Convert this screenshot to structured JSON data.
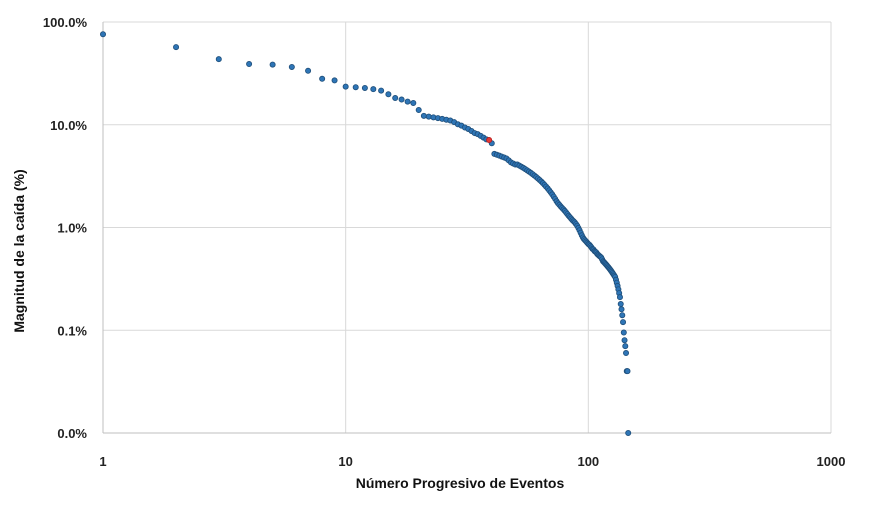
{
  "chart_data": {
    "type": "scatter",
    "title": "",
    "xlabel": "Número Progresivo de Eventos",
    "ylabel": "Magnitud de la caída (%)",
    "x_scale": "log",
    "y_scale": "log",
    "xlim": [
      1,
      1000
    ],
    "ylim": [
      0.0001,
      1
    ],
    "x_ticks": [
      1,
      10,
      100,
      1000
    ],
    "x_tick_labels": [
      "1",
      "10",
      "100",
      "1000"
    ],
    "y_ticks": [
      0.0001,
      0.001,
      0.01,
      0.1,
      1
    ],
    "y_tick_labels": [
      "0.0%",
      "0.1%",
      "1.0%",
      "10.0%",
      "100.0%"
    ],
    "grid": true,
    "legend": "none",
    "series": [
      {
        "color": "#2e75b6",
        "edge_color": "#1f4e79",
        "points": [
          [
            1,
            0.76
          ],
          [
            2,
            0.57
          ],
          [
            3,
            0.435
          ],
          [
            4,
            0.39
          ],
          [
            5,
            0.385
          ],
          [
            6,
            0.365
          ],
          [
            7,
            0.335
          ],
          [
            8,
            0.28
          ],
          [
            9,
            0.27
          ],
          [
            10,
            0.235
          ],
          [
            11,
            0.232
          ],
          [
            12,
            0.228
          ],
          [
            13,
            0.222
          ],
          [
            14,
            0.215
          ],
          [
            15,
            0.198
          ],
          [
            16,
            0.182
          ],
          [
            17,
            0.176
          ],
          [
            18,
            0.168
          ],
          [
            19,
            0.163
          ],
          [
            20,
            0.139
          ],
          [
            21,
            0.122
          ],
          [
            22,
            0.12
          ],
          [
            23,
            0.118
          ],
          [
            24,
            0.116
          ],
          [
            25,
            0.114
          ],
          [
            26,
            0.112
          ],
          [
            27,
            0.11
          ],
          [
            28,
            0.106
          ],
          [
            29,
            0.101
          ],
          [
            30,
            0.098
          ],
          [
            31,
            0.094
          ],
          [
            32,
            0.091
          ],
          [
            33,
            0.087
          ],
          [
            34,
            0.083
          ],
          [
            35,
            0.081
          ],
          [
            36,
            0.078
          ],
          [
            37,
            0.075
          ],
          [
            38,
            0.072
          ],
          [
            40,
            0.066
          ],
          [
            41,
            0.052
          ],
          [
            42,
            0.051
          ],
          [
            43,
            0.05
          ],
          [
            44,
            0.049
          ],
          [
            45,
            0.048
          ],
          [
            46,
            0.047
          ],
          [
            47,
            0.045
          ],
          [
            48,
            0.043
          ],
          [
            49,
            0.042
          ],
          [
            50,
            0.041
          ],
          [
            51,
            0.041
          ],
          [
            52,
            0.04
          ],
          [
            53,
            0.039
          ],
          [
            54,
            0.038
          ],
          [
            55,
            0.037
          ],
          [
            56,
            0.036
          ],
          [
            57,
            0.035
          ],
          [
            58,
            0.034
          ],
          [
            59,
            0.033
          ],
          [
            60,
            0.032
          ],
          [
            61,
            0.031
          ],
          [
            62,
            0.03
          ],
          [
            63,
            0.029
          ],
          [
            64,
            0.028
          ],
          [
            65,
            0.027
          ],
          [
            66,
            0.026
          ],
          [
            67,
            0.025
          ],
          [
            68,
            0.024
          ],
          [
            69,
            0.023
          ],
          [
            70,
            0.022
          ],
          [
            71,
            0.021
          ],
          [
            72,
            0.02
          ],
          [
            73,
            0.019
          ],
          [
            74,
            0.018
          ],
          [
            75,
            0.0172
          ],
          [
            76,
            0.0166
          ],
          [
            77,
            0.016
          ],
          [
            78,
            0.0155
          ],
          [
            79,
            0.015
          ],
          [
            80,
            0.0145
          ],
          [
            81,
            0.014
          ],
          [
            82,
            0.0135
          ],
          [
            83,
            0.013
          ],
          [
            84,
            0.0126
          ],
          [
            85,
            0.0122
          ],
          [
            86,
            0.0118
          ],
          [
            87,
            0.0115
          ],
          [
            88,
            0.0112
          ],
          [
            89,
            0.0108
          ],
          [
            90,
            0.0104
          ],
          [
            91,
            0.0099
          ],
          [
            92,
            0.0094
          ],
          [
            93,
            0.0089
          ],
          [
            94,
            0.0084
          ],
          [
            95,
            0.008
          ],
          [
            96,
            0.0077
          ],
          [
            97,
            0.0075
          ],
          [
            98,
            0.0073
          ],
          [
            99,
            0.0071
          ],
          [
            100,
            0.0069
          ],
          [
            101,
            0.0068
          ],
          [
            102,
            0.0066
          ],
          [
            103,
            0.0064
          ],
          [
            104,
            0.0062
          ],
          [
            105,
            0.0061
          ],
          [
            106,
            0.0059
          ],
          [
            107,
            0.0058
          ],
          [
            108,
            0.0057
          ],
          [
            109,
            0.0055
          ],
          [
            110,
            0.0054
          ],
          [
            111,
            0.0053
          ],
          [
            112,
            0.0052
          ],
          [
            113,
            0.0051
          ],
          [
            114,
            0.0049
          ],
          [
            115,
            0.0047
          ],
          [
            116,
            0.0046
          ],
          [
            117,
            0.0045
          ],
          [
            118,
            0.0044
          ],
          [
            119,
            0.0043
          ],
          [
            120,
            0.0042
          ],
          [
            121,
            0.0041
          ],
          [
            122,
            0.004
          ],
          [
            123,
            0.0039
          ],
          [
            124,
            0.0038
          ],
          [
            125,
            0.0037
          ],
          [
            126,
            0.0036
          ],
          [
            127,
            0.0035
          ],
          [
            128,
            0.0034
          ],
          [
            129,
            0.0033
          ],
          [
            130,
            0.0031
          ],
          [
            131,
            0.0029
          ],
          [
            132,
            0.0027
          ],
          [
            133,
            0.0025
          ],
          [
            134,
            0.0023
          ],
          [
            135,
            0.0021
          ],
          [
            136,
            0.0018
          ],
          [
            137,
            0.0016
          ],
          [
            138,
            0.0014
          ],
          [
            139,
            0.0012
          ],
          [
            140,
            0.00095
          ],
          [
            141,
            0.0008
          ],
          [
            142,
            0.0007
          ],
          [
            143,
            0.0006
          ],
          [
            144,
            0.0004
          ],
          [
            145,
            0.0004
          ],
          [
            146,
            0.0001
          ]
        ]
      },
      {
        "color": "#e53935",
        "edge_color": "#b71c1c",
        "points": [
          [
            39,
            0.071
          ]
        ]
      }
    ]
  }
}
